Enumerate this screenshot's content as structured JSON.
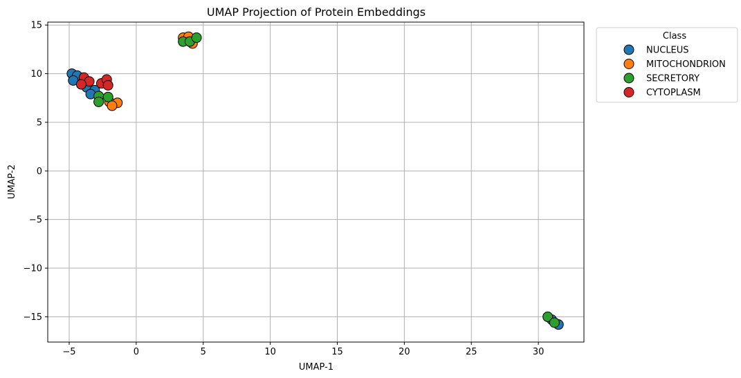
{
  "chart_data": {
    "type": "scatter",
    "title": "UMAP Projection of Protein Embeddings",
    "xlabel": "UMAP-1",
    "ylabel": "UMAP-2",
    "xlim": [
      -6.6,
      33.4
    ],
    "ylim": [
      -17.6,
      15.3
    ],
    "xticks": [
      -5,
      0,
      5,
      10,
      15,
      20,
      25,
      30
    ],
    "yticks": [
      -15,
      -10,
      -5,
      0,
      5,
      10,
      15
    ],
    "grid": true,
    "legend": {
      "title": "Class",
      "placement": "outside-top-right"
    },
    "series": [
      {
        "name": "NUCLEUS",
        "color": "#1f77b4",
        "points": [
          {
            "x": -4.8,
            "y": 10.0
          },
          {
            "x": -4.4,
            "y": 9.8
          },
          {
            "x": -4.7,
            "y": 9.3
          },
          {
            "x": -3.7,
            "y": 8.6
          },
          {
            "x": -3.1,
            "y": 8.3
          },
          {
            "x": -3.4,
            "y": 7.9
          },
          {
            "x": 31.0,
            "y": -15.3
          },
          {
            "x": 31.5,
            "y": -15.8
          }
        ]
      },
      {
        "name": "MITOCHONDRION",
        "color": "#ff7f0e",
        "points": [
          {
            "x": 3.5,
            "y": 13.7
          },
          {
            "x": 3.9,
            "y": 13.8
          },
          {
            "x": 4.2,
            "y": 13.1
          },
          {
            "x": -2.0,
            "y": 7.1
          },
          {
            "x": -1.4,
            "y": 7.0
          },
          {
            "x": -1.8,
            "y": 6.7
          }
        ]
      },
      {
        "name": "SECRETORY",
        "color": "#2ca02c",
        "points": [
          {
            "x": 3.5,
            "y": 13.3
          },
          {
            "x": 4.0,
            "y": 13.3
          },
          {
            "x": 4.5,
            "y": 13.7
          },
          {
            "x": -2.8,
            "y": 7.7
          },
          {
            "x": -2.1,
            "y": 7.6
          },
          {
            "x": -2.8,
            "y": 7.1
          },
          {
            "x": 30.7,
            "y": -15.0
          },
          {
            "x": 31.2,
            "y": -15.6
          }
        ]
      },
      {
        "name": "CYTOPLASM",
        "color": "#d62728",
        "points": [
          {
            "x": -3.9,
            "y": 9.6
          },
          {
            "x": -3.5,
            "y": 9.2
          },
          {
            "x": -4.1,
            "y": 8.9
          },
          {
            "x": -2.6,
            "y": 9.0
          },
          {
            "x": -2.2,
            "y": 9.4
          },
          {
            "x": -2.1,
            "y": 8.8
          }
        ]
      }
    ]
  }
}
